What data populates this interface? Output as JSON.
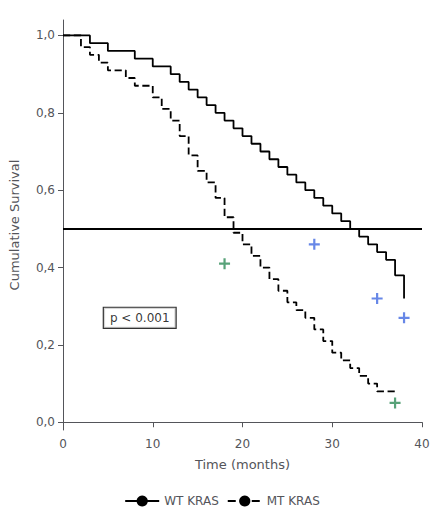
{
  "chart_data": {
    "type": "line",
    "xlabel": "Time (months)",
    "ylabel": "Cumulative Survival",
    "xlim": [
      0,
      40
    ],
    "xticks": [
      0,
      10,
      20,
      30,
      40
    ],
    "ylim": [
      -0.02,
      1.04
    ],
    "yticks": [
      {
        "value": 0.0,
        "label": "0,0"
      },
      {
        "value": 0.2,
        "label": "0,2"
      },
      {
        "value": 0.4,
        "label": "0,4"
      },
      {
        "value": 0.6,
        "label": "0,6"
      },
      {
        "value": 0.8,
        "label": "0,8"
      },
      {
        "value": 1.0,
        "label": "1,0"
      }
    ],
    "grid": false,
    "legend": "bottom",
    "series": [
      {
        "name": "WT KRAS",
        "type": "step",
        "color": "#000000",
        "line_style": "solid",
        "x": [
          0,
          2,
          3,
          4,
          5,
          6,
          7,
          8,
          9,
          10,
          11,
          12,
          13,
          14,
          15,
          16,
          17,
          18,
          19,
          20,
          21,
          22,
          23,
          24,
          25,
          26,
          27,
          28,
          29,
          30,
          31,
          32,
          33,
          34,
          35,
          36,
          37,
          38
        ],
        "values": [
          1.0,
          1.0,
          0.98,
          0.98,
          0.96,
          0.96,
          0.96,
          0.94,
          0.94,
          0.92,
          0.92,
          0.9,
          0.88,
          0.86,
          0.84,
          0.82,
          0.8,
          0.78,
          0.76,
          0.74,
          0.72,
          0.7,
          0.68,
          0.66,
          0.64,
          0.62,
          0.6,
          0.58,
          0.56,
          0.54,
          0.52,
          0.5,
          0.48,
          0.46,
          0.44,
          0.42,
          0.38,
          0.32
        ]
      },
      {
        "name": "MT KRAS",
        "type": "step",
        "color": "#000000",
        "line_style": "dashed",
        "x": [
          0,
          2,
          3,
          4,
          5,
          6,
          7,
          8,
          9,
          10,
          11,
          12,
          13,
          14,
          15,
          16,
          17,
          18,
          19,
          20,
          21,
          22,
          23,
          24,
          25,
          26,
          27,
          28,
          29,
          30,
          31,
          32,
          33,
          34,
          35,
          36,
          37
        ],
        "values": [
          1.0,
          0.97,
          0.95,
          0.93,
          0.91,
          0.91,
          0.89,
          0.87,
          0.87,
          0.84,
          0.81,
          0.78,
          0.74,
          0.69,
          0.65,
          0.62,
          0.58,
          0.53,
          0.49,
          0.46,
          0.43,
          0.4,
          0.37,
          0.34,
          0.31,
          0.29,
          0.27,
          0.24,
          0.21,
          0.18,
          0.16,
          0.14,
          0.12,
          0.1,
          0.08,
          0.08,
          0.08
        ]
      },
      {
        "type": "scatter",
        "marker": "plus",
        "color": "#4169E1",
        "x": [
          28,
          35,
          38
        ],
        "values": [
          0.46,
          0.32,
          0.27
        ]
      },
      {
        "type": "scatter",
        "marker": "plus",
        "color": "#2e8b57",
        "x": [
          18,
          37
        ],
        "values": [
          0.41,
          0.05
        ]
      }
    ],
    "hline": 0.5,
    "annotations": [
      {
        "text": "p < 0.001",
        "x": 4,
        "y": 0.27
      }
    ]
  }
}
